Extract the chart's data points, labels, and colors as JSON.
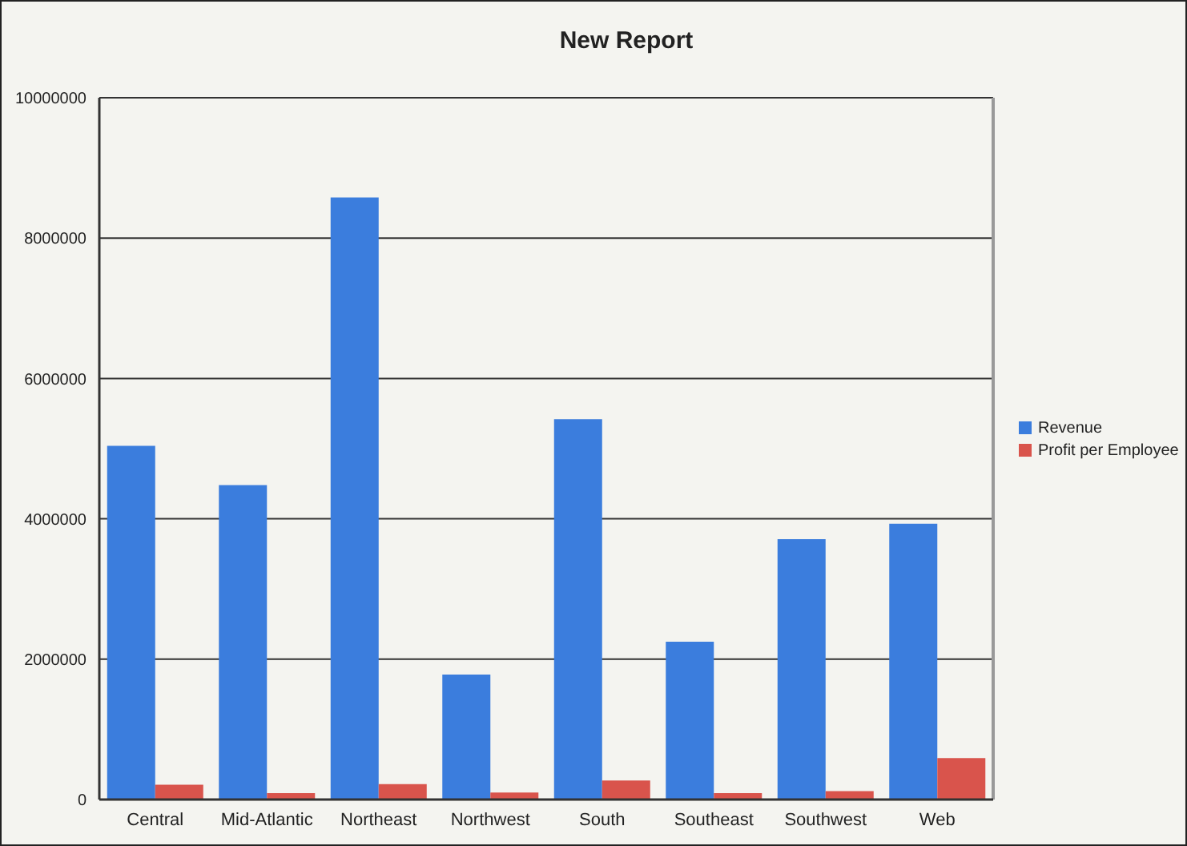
{
  "chart_data": {
    "type": "bar",
    "title": "New Report",
    "categories": [
      "Central",
      "Mid-Atlantic",
      "Northeast",
      "Northwest",
      "South",
      "Southeast",
      "Southwest",
      "Web"
    ],
    "series": [
      {
        "name": "Revenue",
        "color": "#3b7ddd",
        "values": [
          5040000,
          4480000,
          8580000,
          1780000,
          5420000,
          2250000,
          3710000,
          3930000
        ]
      },
      {
        "name": "Profit per Employee",
        "color": "#d9544c",
        "values": [
          210000,
          90000,
          220000,
          100000,
          270000,
          90000,
          120000,
          590000
        ]
      }
    ],
    "ylim": [
      0,
      10000000
    ],
    "yticks": [
      0,
      2000000,
      4000000,
      6000000,
      8000000,
      10000000
    ],
    "grid": "y",
    "legend": "right"
  }
}
